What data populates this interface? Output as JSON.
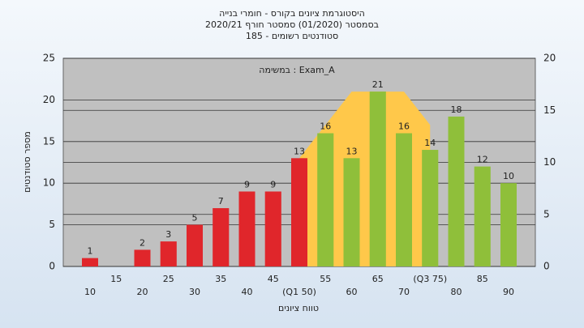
{
  "chart_data": {
    "type": "bar",
    "title": "היסטוגרמת ציונים בקורס - חומרי בנייה",
    "subtitle": "בסמסטר (01/2020) סמסטר חורף 2020/21",
    "subtitle2": "סטודנטים רשומים - 185",
    "annotation": "במשימה : Exam_A",
    "ylabel": "מספר סטודנטים",
    "xlabel": "טווח ציונים",
    "categories": [
      "10",
      "15",
      "20",
      "25",
      "30",
      "35",
      "40",
      "45",
      "(Q1 50)",
      "55",
      "60",
      "65",
      "70",
      "(Q3 75)",
      "80",
      "85",
      "90"
    ],
    "values": [
      1,
      null,
      2,
      3,
      5,
      7,
      9,
      9,
      13,
      16,
      13,
      21,
      16,
      14,
      18,
      12,
      10
    ],
    "colors": [
      "#e0262b",
      "#e0262b",
      "#e0262b",
      "#e0262b",
      "#e0262b",
      "#e0262b",
      "#e0262b",
      "#e0262b",
      "#e0262b",
      "#8fbf3a",
      "#8fbf3a",
      "#8fbf3a",
      "#8fbf3a",
      "#8fbf3a",
      "#8fbf3a",
      "#8fbf3a",
      "#8fbf3a"
    ],
    "band": {
      "color": "#ffc84a",
      "values": [
        null,
        null,
        null,
        null,
        null,
        null,
        null,
        null,
        13,
        17,
        21,
        21,
        21,
        17,
        null,
        null,
        null
      ]
    },
    "ylim": [
      0,
      25
    ],
    "yticks": [
      0,
      5,
      10,
      15,
      20,
      25
    ],
    "y2lim": [
      0,
      20
    ],
    "y2ticks": [
      0,
      5,
      10,
      15,
      20
    ],
    "grid": true
  }
}
